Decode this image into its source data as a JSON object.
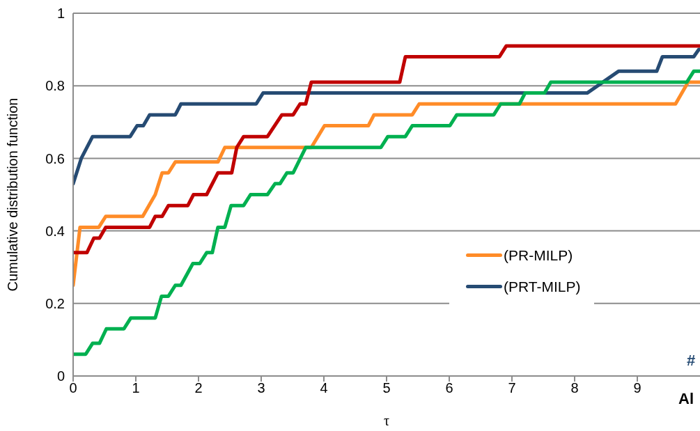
{
  "chart_data": {
    "type": "line",
    "xlabel": "τ",
    "ylabel": "Cumulative distribution function",
    "xlim": [
      0,
      10
    ],
    "ylim": [
      0,
      1
    ],
    "xticks": [
      0,
      1,
      2,
      3,
      4,
      5,
      6,
      7,
      8,
      9
    ],
    "yticks": [
      0,
      0.2,
      0.4,
      0.6,
      0.8,
      1
    ],
    "grid": "y",
    "legend": "bottom right",
    "line_style": "solid",
    "marker": "none",
    "annotations": [
      "#",
      "Al"
    ],
    "series": [
      {
        "name": "(PR-MILP)",
        "color": "#ff8c28",
        "x": [
          0,
          0.11,
          0.41,
          0.52,
          1.11,
          1.31,
          1.42,
          1.52,
          1.63,
          2.31,
          2.42,
          3.8,
          4.01,
          4.71,
          4.8,
          5.41,
          5.52,
          9.61,
          9.81,
          10
        ],
        "values": [
          0.25,
          0.41,
          0.41,
          0.44,
          0.44,
          0.5,
          0.56,
          0.56,
          0.59,
          0.59,
          0.63,
          0.63,
          0.69,
          0.69,
          0.72,
          0.72,
          0.75,
          0.75,
          0.81,
          0.81
        ]
      },
      {
        "name": "(PRT-MILP)",
        "color": "#264b73",
        "x": [
          0,
          0.13,
          0.31,
          0.91,
          1.02,
          1.12,
          1.22,
          1.63,
          1.72,
          2.92,
          3.03,
          8.2,
          8.7,
          9.31,
          9.4,
          9.9,
          9.98,
          10
        ],
        "values": [
          0.53,
          0.6,
          0.66,
          0.66,
          0.69,
          0.69,
          0.72,
          0.72,
          0.75,
          0.75,
          0.78,
          0.78,
          0.84,
          0.84,
          0.88,
          0.88,
          0.9,
          0.9
        ]
      },
      {
        "color": "#c00000",
        "x": [
          0,
          0.22,
          0.33,
          0.42,
          0.52,
          1.22,
          1.31,
          1.42,
          1.52,
          1.83,
          1.92,
          2.13,
          2.31,
          2.53,
          2.61,
          2.72,
          3.1,
          3.33,
          3.51,
          3.62,
          3.71,
          3.8,
          5.21,
          5.3,
          6.8,
          6.91,
          10
        ],
        "values": [
          0.34,
          0.34,
          0.38,
          0.38,
          0.41,
          0.41,
          0.44,
          0.44,
          0.47,
          0.47,
          0.5,
          0.5,
          0.56,
          0.56,
          0.63,
          0.66,
          0.66,
          0.72,
          0.72,
          0.75,
          0.75,
          0.81,
          0.81,
          0.88,
          0.88,
          0.91,
          0.91
        ]
      },
      {
        "color": "#00b050",
        "x": [
          0,
          0.2,
          0.31,
          0.42,
          0.53,
          0.81,
          0.92,
          1.31,
          1.41,
          1.52,
          1.63,
          1.72,
          1.91,
          2.02,
          2.13,
          2.22,
          2.31,
          2.42,
          2.52,
          2.72,
          2.83,
          3.1,
          3.22,
          3.3,
          3.41,
          3.51,
          3.71,
          4.91,
          5.02,
          5.3,
          5.41,
          6.01,
          6.12,
          6.71,
          6.82,
          7.12,
          7.21,
          7.52,
          7.62,
          9.79,
          9.9,
          10
        ],
        "values": [
          0.06,
          0.06,
          0.09,
          0.09,
          0.13,
          0.13,
          0.16,
          0.16,
          0.22,
          0.22,
          0.25,
          0.25,
          0.31,
          0.31,
          0.34,
          0.34,
          0.41,
          0.41,
          0.47,
          0.47,
          0.5,
          0.5,
          0.53,
          0.53,
          0.56,
          0.56,
          0.63,
          0.63,
          0.66,
          0.66,
          0.69,
          0.69,
          0.72,
          0.72,
          0.75,
          0.75,
          0.78,
          0.78,
          0.81,
          0.81,
          0.84,
          0.84
        ]
      }
    ]
  }
}
